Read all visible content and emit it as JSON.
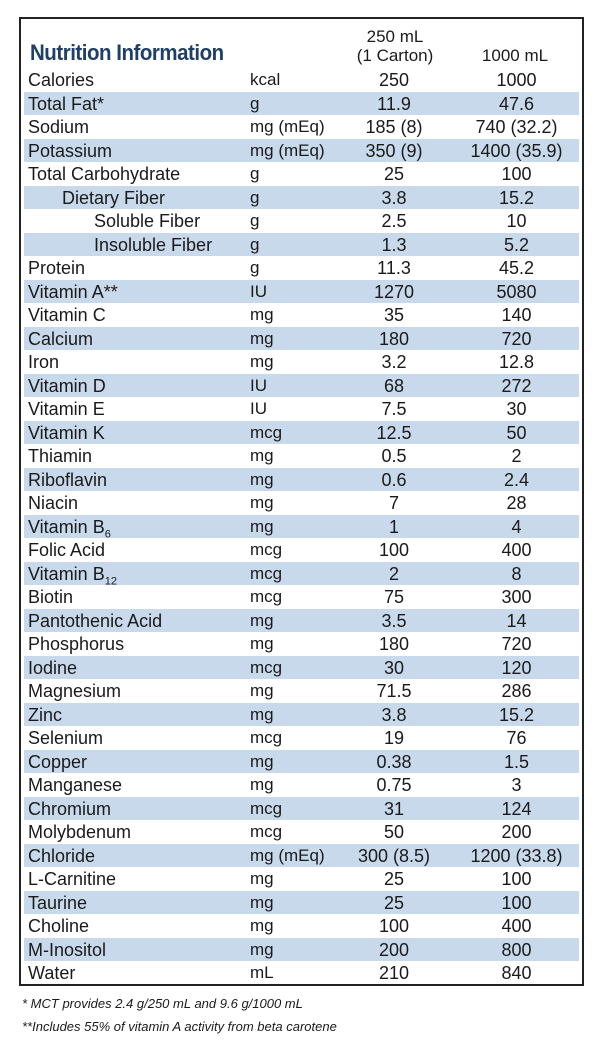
{
  "title": "Nutrition Information",
  "headers": {
    "col1_line1": "250 mL",
    "col1_line2": "(1 Carton)",
    "col2": "1000 mL"
  },
  "rows": [
    {
      "name": "Calories",
      "unit": "kcal",
      "v1": "250",
      "v2": "1000",
      "shaded": false,
      "indent": 0
    },
    {
      "name": "Total Fat*",
      "unit": "g",
      "v1": "11.9",
      "v2": "47.6",
      "shaded": true,
      "indent": 0
    },
    {
      "name": "Sodium",
      "unit": "mg (mEq)",
      "v1": "185 (8)",
      "v2": "740 (32.2)",
      "shaded": false,
      "indent": 0
    },
    {
      "name": "Potassium",
      "unit": "mg (mEq)",
      "v1": "350 (9)",
      "v2": "1400 (35.9)",
      "shaded": true,
      "indent": 0
    },
    {
      "name": "Total Carbohydrate",
      "unit": "g",
      "v1": "25",
      "v2": "100",
      "shaded": false,
      "indent": 0
    },
    {
      "name": "Dietary Fiber",
      "unit": "g",
      "v1": "3.8",
      "v2": "15.2",
      "shaded": true,
      "indent": 1
    },
    {
      "name": "Soluble Fiber",
      "unit": "g",
      "v1": "2.5",
      "v2": "10",
      "shaded": false,
      "indent": 2
    },
    {
      "name": "Insoluble Fiber",
      "unit": "g",
      "v1": "1.3",
      "v2": "5.2",
      "shaded": true,
      "indent": 2
    },
    {
      "name": "Protein",
      "unit": "g",
      "v1": "11.3",
      "v2": "45.2",
      "shaded": false,
      "indent": 0
    },
    {
      "name": "Vitamin A**",
      "unit": "IU",
      "v1": "1270",
      "v2": "5080",
      "shaded": true,
      "indent": 0
    },
    {
      "name": "Vitamin C",
      "unit": "mg",
      "v1": "35",
      "v2": "140",
      "shaded": false,
      "indent": 0
    },
    {
      "name": "Calcium",
      "unit": "mg",
      "v1": "180",
      "v2": "720",
      "shaded": true,
      "indent": 0
    },
    {
      "name": "Iron",
      "unit": "mg",
      "v1": "3.2",
      "v2": "12.8",
      "shaded": false,
      "indent": 0
    },
    {
      "name": "Vitamin D",
      "unit": "IU",
      "v1": "68",
      "v2": "272",
      "shaded": true,
      "indent": 0
    },
    {
      "name": "Vitamin E",
      "unit": "IU",
      "v1": "7.5",
      "v2": "30",
      "shaded": false,
      "indent": 0
    },
    {
      "name": "Vitamin K",
      "unit": "mcg",
      "v1": "12.5",
      "v2": "50",
      "shaded": true,
      "indent": 0
    },
    {
      "name": "Thiamin",
      "unit": "mg",
      "v1": "0.5",
      "v2": "2",
      "shaded": false,
      "indent": 0
    },
    {
      "name": "Riboflavin",
      "unit": "mg",
      "v1": "0.6",
      "v2": "2.4",
      "shaded": true,
      "indent": 0
    },
    {
      "name": "Niacin",
      "unit": "mg",
      "v1": "7",
      "v2": "28",
      "shaded": false,
      "indent": 0
    },
    {
      "name": "Vitamin B",
      "sub": "6",
      "unit": "mg",
      "v1": "1",
      "v2": "4",
      "shaded": true,
      "indent": 0
    },
    {
      "name": "Folic Acid",
      "unit": "mcg",
      "v1": "100",
      "v2": "400",
      "shaded": false,
      "indent": 0
    },
    {
      "name": "Vitamin B",
      "sub": "12",
      "unit": "mcg",
      "v1": "2",
      "v2": "8",
      "shaded": true,
      "indent": 0
    },
    {
      "name": "Biotin",
      "unit": "mcg",
      "v1": "75",
      "v2": "300",
      "shaded": false,
      "indent": 0
    },
    {
      "name": "Pantothenic Acid",
      "unit": "mg",
      "v1": "3.5",
      "v2": "14",
      "shaded": true,
      "indent": 0
    },
    {
      "name": "Phosphorus",
      "unit": "mg",
      "v1": "180",
      "v2": "720",
      "shaded": false,
      "indent": 0
    },
    {
      "name": "Iodine",
      "unit": "mcg",
      "v1": "30",
      "v2": "120",
      "shaded": true,
      "indent": 0
    },
    {
      "name": "Magnesium",
      "unit": "mg",
      "v1": "71.5",
      "v2": "286",
      "shaded": false,
      "indent": 0
    },
    {
      "name": "Zinc",
      "unit": "mg",
      "v1": "3.8",
      "v2": "15.2",
      "shaded": true,
      "indent": 0
    },
    {
      "name": "Selenium",
      "unit": "mcg",
      "v1": "19",
      "v2": "76",
      "shaded": false,
      "indent": 0
    },
    {
      "name": "Copper",
      "unit": "mg",
      "v1": "0.38",
      "v2": "1.5",
      "shaded": true,
      "indent": 0
    },
    {
      "name": "Manganese",
      "unit": "mg",
      "v1": "0.75",
      "v2": "3",
      "shaded": false,
      "indent": 0
    },
    {
      "name": "Chromium",
      "unit": "mcg",
      "v1": "31",
      "v2": "124",
      "shaded": true,
      "indent": 0
    },
    {
      "name": "Molybdenum",
      "unit": "mcg",
      "v1": "50",
      "v2": "200",
      "shaded": false,
      "indent": 0
    },
    {
      "name": "Chloride",
      "unit": "mg (mEq)",
      "v1": "300 (8.5)",
      "v2": "1200 (33.8)",
      "shaded": true,
      "indent": 0
    },
    {
      "name": "L-Carnitine",
      "unit": "mg",
      "v1": "25",
      "v2": "100",
      "shaded": false,
      "indent": 0
    },
    {
      "name": "Taurine",
      "unit": "mg",
      "v1": "25",
      "v2": "100",
      "shaded": true,
      "indent": 0
    },
    {
      "name": "Choline",
      "unit": "mg",
      "v1": "100",
      "v2": "400",
      "shaded": false,
      "indent": 0
    },
    {
      "name": "M-Inositol",
      "unit": "mg",
      "v1": "200",
      "v2": "800",
      "shaded": true,
      "indent": 0
    },
    {
      "name": "Water",
      "unit": "mL",
      "v1": "210",
      "v2": "840",
      "shaded": false,
      "indent": 0
    }
  ],
  "footnotes": [
    "* MCT provides 2.4 g/250 mL and 9.6 g/1000 mL",
    "**Includes 55% of vitamin A activity from beta carotene"
  ],
  "colors": {
    "title": "#1f3f66",
    "row_shade": "#c9d9ec",
    "border": "#222222"
  }
}
